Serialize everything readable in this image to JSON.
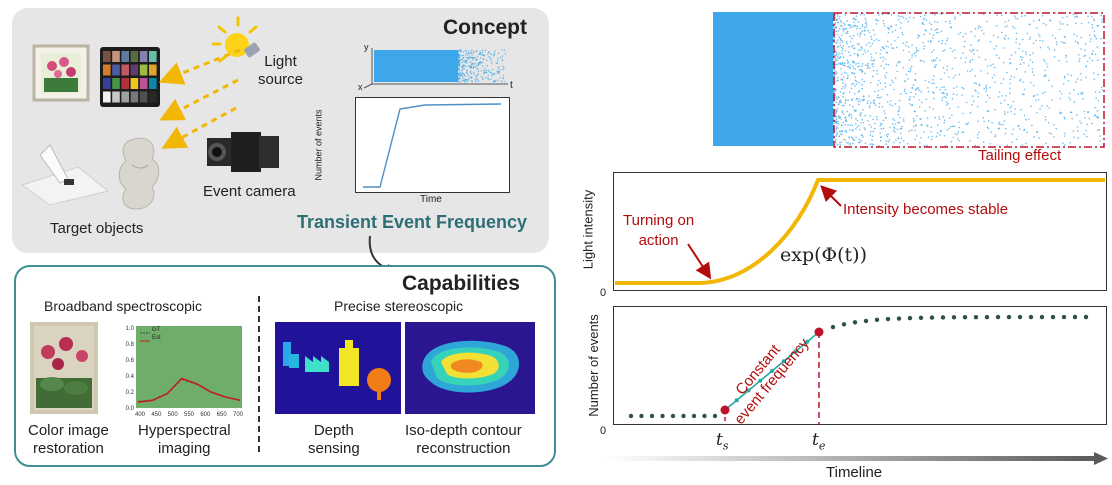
{
  "concept": {
    "title": "Concept",
    "light_source": "Light\nsource",
    "event_camera": "Event camera",
    "target_objects": "Target objects",
    "transient": "Transient Event Frequency",
    "mini_plot": {
      "ylabel": "Number of events",
      "xlabel": "Time"
    },
    "scatter_axes": {
      "y": "y",
      "x": "x",
      "t": "t"
    }
  },
  "capabilities": {
    "title": "Capabilities",
    "left_header": "Broadband spectroscopic",
    "right_header": "Precise stereoscopic",
    "items": [
      {
        "label": "Color image\nrestoration"
      },
      {
        "label": "Hyperspectral\nimaging"
      },
      {
        "label": "Depth\nsensing"
      },
      {
        "label": "Iso-depth contour\nreconstruction"
      }
    ],
    "spectrum": {
      "legend": [
        "GT",
        "Est"
      ],
      "x_ticks": [
        "400",
        "450",
        "500",
        "550",
        "600",
        "650",
        "700"
      ],
      "y_ticks": [
        "0.0",
        "0.2",
        "0.4",
        "0.6",
        "0.8",
        "1.0"
      ]
    }
  },
  "right": {
    "tailing": "Tailing effect",
    "intensity": {
      "ylabel": "Light intensity",
      "zero": "0",
      "turning_on": "Turning on\naction",
      "stable": "Intensity becomes stable",
      "formula": "exp(Φ(t))"
    },
    "events": {
      "ylabel": "Number of events",
      "zero": "0",
      "constant": "Constant\nevent frequency",
      "ts": "t",
      "ts_sub": "s",
      "te": "t",
      "te_sub": "e"
    },
    "timeline": "Timeline"
  },
  "colors": {
    "teal": "#2d6e78",
    "red": "#b40d0d",
    "gold": "#f2b705",
    "event_blue": "#3ea7ea",
    "dark_dot": "#2f4f4a"
  }
}
